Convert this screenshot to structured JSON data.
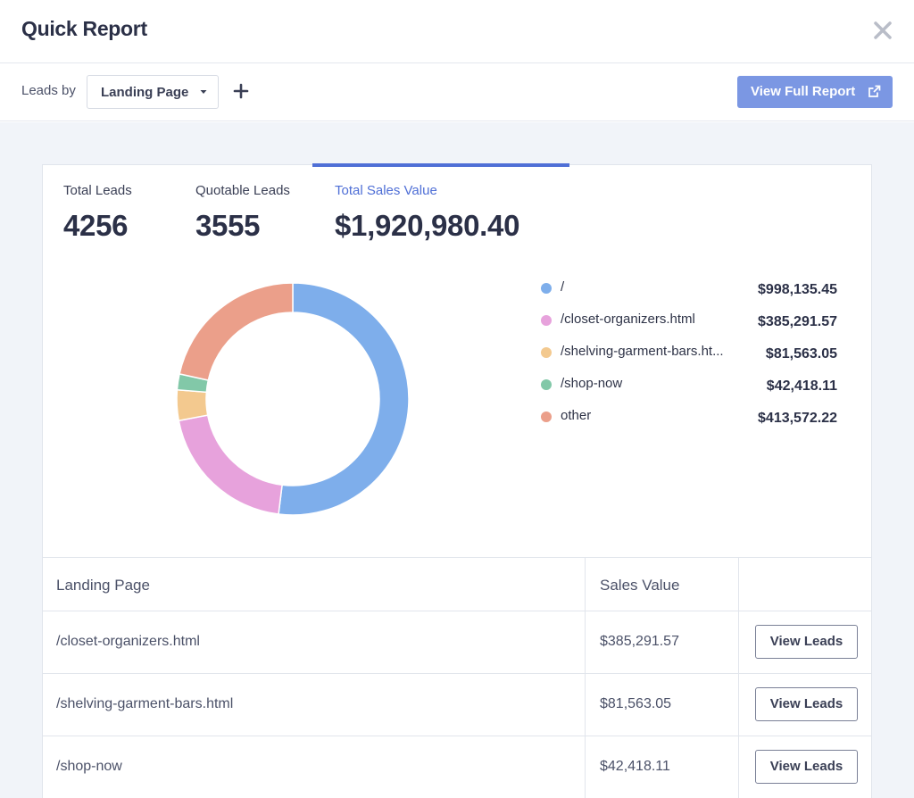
{
  "header": {
    "title": "Quick Report",
    "close_icon": "close-icon"
  },
  "toolbar": {
    "leads_by_label": "Leads by",
    "group_select_value": "Landing Page",
    "add_icon": "plus-icon",
    "full_report_label": "View Full Report",
    "full_report_icon": "external-link-icon"
  },
  "stats": [
    {
      "label": "Total Leads",
      "value": "4256"
    },
    {
      "label": "Quotable Leads",
      "value": "3555"
    },
    {
      "label": "Total Sales Value",
      "value": "$1,920,980.40"
    }
  ],
  "colors": {
    "accent": "#4f6fd6",
    "button": "#7b97e3"
  },
  "chart_data": {
    "type": "pie",
    "variant": "donut",
    "title": "Total Sales Value",
    "categories": [
      "/",
      "/closet-organizers.html",
      "/shelving-garment-bars.ht...",
      "/shop-now",
      "other"
    ],
    "values": [
      998135.45,
      385291.57,
      81563.05,
      42418.11,
      413572.22
    ],
    "value_labels": [
      "$998,135.45",
      "$385,291.57",
      "$81,563.05",
      "$42,418.11",
      "$413,572.22"
    ],
    "colors": [
      "#7eaeeb",
      "#e7a2dc",
      "#f3c98f",
      "#82c8a8",
      "#eb9f8a"
    ],
    "legend": "right"
  },
  "table": {
    "headers": [
      "Landing Page",
      "Sales Value",
      ""
    ],
    "rows": [
      {
        "page": "/closet-organizers.html",
        "value": "$385,291.57",
        "action": "View Leads"
      },
      {
        "page": "/shelving-garment-bars.html",
        "value": "$81,563.05",
        "action": "View Leads"
      },
      {
        "page": "/shop-now",
        "value": "$42,418.11",
        "action": "View Leads"
      }
    ]
  }
}
